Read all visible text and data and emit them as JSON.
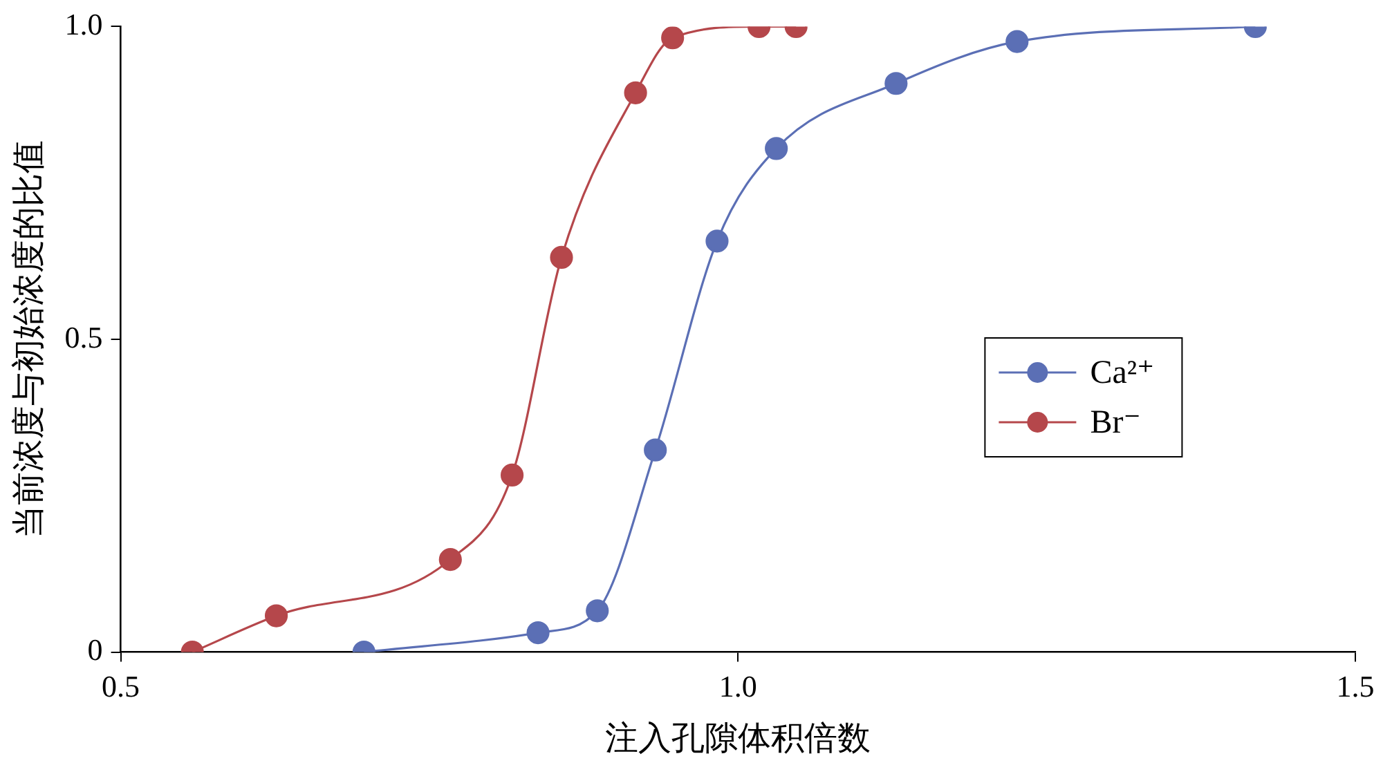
{
  "chart_data": {
    "type": "line",
    "xlabel": "注入孔隙体积倍数",
    "ylabel": "当前浓度与初始浓度的比值",
    "xlim": [
      0.5,
      1.5
    ],
    "xticks": [
      {
        "value": 0.5,
        "label": "0.5"
      },
      {
        "value": 1.0,
        "label": "1.0"
      },
      {
        "value": 1.5,
        "label": "1.5"
      }
    ],
    "ylim": [
      0,
      1.0
    ],
    "yticks": [
      0,
      {
        "value": 0.5,
        "label": "0.5"
      },
      {
        "value": 1.0,
        "label": "1.0"
      }
    ],
    "grid": false,
    "legend": "right",
    "marker": "circle",
    "line_style": "solid",
    "series": [
      {
        "name": "Ca²⁺",
        "color": "#5b6fb5",
        "x": [
          0.697,
          0.838,
          0.886,
          0.933,
          0.983,
          1.031,
          1.128,
          1.226,
          1.419
        ],
        "values": [
          0,
          0.031,
          0.066,
          0.323,
          0.657,
          0.805,
          0.909,
          0.976,
          1.0
        ]
      },
      {
        "name": "Br⁻",
        "color": "#b5474b",
        "x": [
          0.558,
          0.626,
          0.767,
          0.817,
          0.857,
          0.917,
          0.947,
          1.017,
          1.047
        ],
        "values": [
          0,
          0.058,
          0.148,
          0.283,
          0.631,
          0.894,
          0.982,
          1.0,
          1.0
        ]
      }
    ]
  }
}
